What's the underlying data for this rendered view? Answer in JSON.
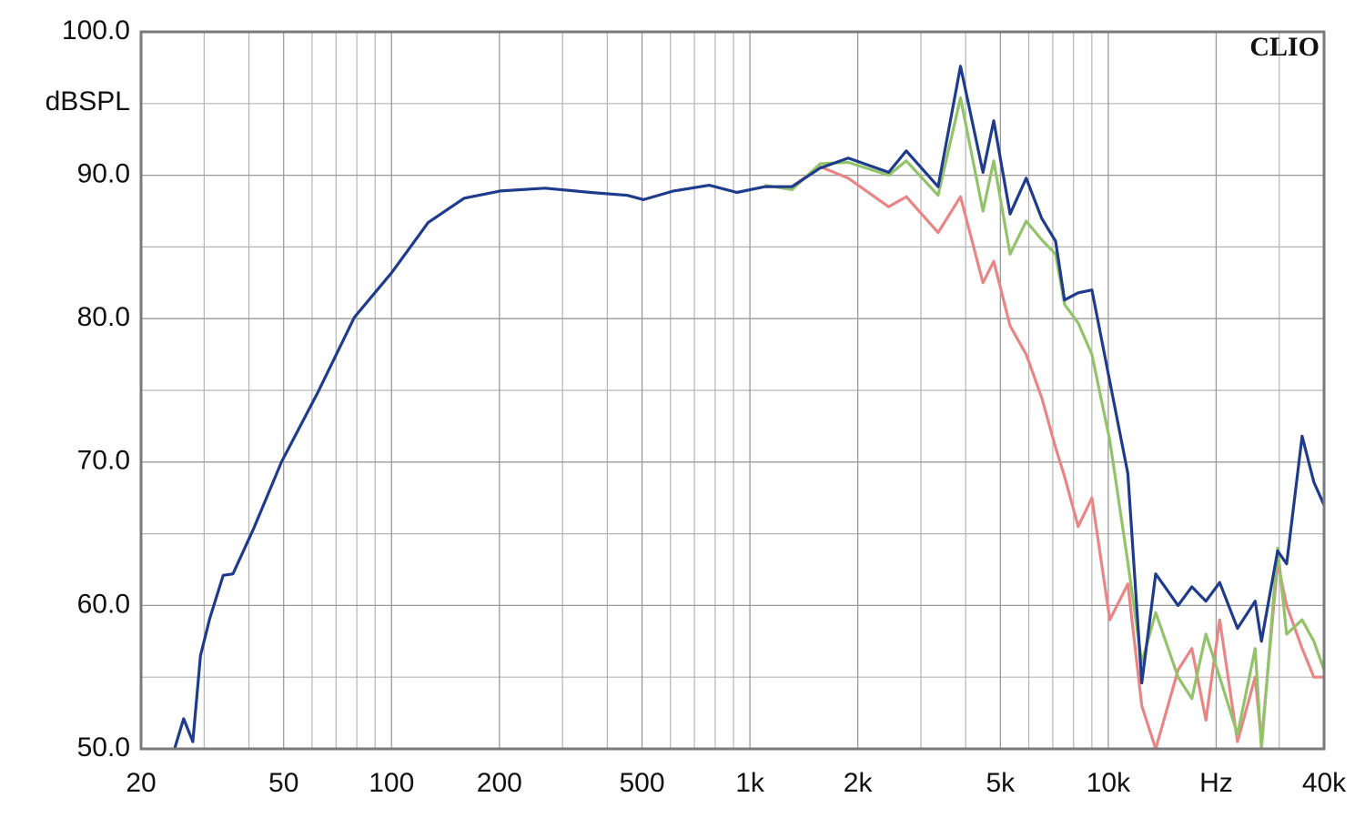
{
  "chart_data": {
    "type": "line",
    "y_label": "dBSPL",
    "annotation": "CLIO",
    "xscale": "log",
    "grid": true,
    "x": [
      24.8,
      26.3,
      27.9,
      29.3,
      31.1,
      33.9,
      36.1,
      41.3,
      49.3,
      62.4,
      78.8,
      100,
      126.5,
      159.6,
      201,
      268,
      359,
      455,
      505,
      612,
      770,
      920,
      1100,
      1310,
      1570,
      1880,
      2440,
      2730,
      3350,
      3870,
      4470,
      4790,
      5320,
      5900,
      6520,
      7130,
      7550,
      8240,
      9000,
      10100,
      11340,
      12400,
      13560,
      15660,
      17100,
      18730,
      20450,
      22940,
      25690,
      26760,
      29690,
      31460,
      34740,
      37460,
      40000
    ],
    "series": [
      {
        "color": "#1f3c8c",
        "values": [
          50.0,
          52.1,
          50.5,
          56.5,
          59.1,
          62.1,
          62.2,
          65.4,
          70.0,
          74.9,
          80.1,
          83.2,
          86.7,
          88.4,
          88.9,
          89.1,
          88.8,
          88.6,
          88.3,
          88.9,
          89.3,
          88.8,
          89.2,
          89.2,
          90.5,
          91.2,
          90.2,
          91.7,
          89.2,
          97.6,
          90.2,
          93.8,
          87.3,
          89.8,
          87.0,
          85.4,
          81.3,
          81.8,
          82.0,
          75.6,
          69.2,
          54.6,
          62.2,
          60.0,
          61.3,
          60.3,
          61.6,
          58.4,
          60.3,
          57.5,
          63.8,
          62.9,
          71.8,
          68.6,
          67.0
        ]
      },
      {
        "color": "#92c36a",
        "values": [
          null,
          null,
          null,
          null,
          null,
          null,
          null,
          null,
          null,
          null,
          null,
          null,
          null,
          null,
          null,
          null,
          null,
          null,
          null,
          null,
          null,
          null,
          89.3,
          89.0,
          90.8,
          90.9,
          90.0,
          91.0,
          88.6,
          95.4,
          87.5,
          91.0,
          84.5,
          86.8,
          85.5,
          84.5,
          81,
          79.7,
          77.5,
          71.5,
          63,
          56,
          59.5,
          55,
          53.5,
          58,
          55,
          51,
          57,
          50,
          64,
          58,
          59,
          57.5,
          55.5
        ]
      },
      {
        "color": "#ea8585",
        "values": [
          null,
          null,
          null,
          null,
          null,
          null,
          null,
          null,
          null,
          null,
          null,
          null,
          null,
          null,
          null,
          null,
          null,
          null,
          null,
          null,
          null,
          null,
          89.2,
          89.2,
          90.6,
          89.8,
          87.8,
          88.5,
          86.0,
          88.5,
          82.5,
          84.0,
          79.5,
          77.5,
          74.5,
          71,
          69,
          65.5,
          67.5,
          59,
          61.5,
          53,
          50,
          55.5,
          57,
          52,
          59,
          50.5,
          55,
          50.5,
          63,
          60,
          57,
          55,
          55
        ]
      }
    ],
    "xlim": [
      20,
      40000
    ],
    "xticks": [
      20,
      50,
      100,
      200,
      500,
      {
        "value": 1000,
        "label": "1k"
      },
      {
        "value": 2000,
        "label": "2k"
      },
      {
        "value": 5000,
        "label": "5k"
      },
      {
        "value": 10000,
        "label": "10k"
      },
      {
        "value": 20000,
        "label": "Hz"
      },
      {
        "value": 40000,
        "label": "40k"
      }
    ],
    "xminorticks": [
      30,
      40,
      60,
      70,
      80,
      90,
      300,
      400,
      600,
      700,
      800,
      900,
      3000,
      4000,
      6000,
      7000,
      8000,
      9000,
      30000
    ],
    "ylim": [
      50,
      100
    ],
    "yticks": [
      {
        "value": 50,
        "label": "50.0"
      },
      {
        "value": 60,
        "label": "60.0"
      },
      {
        "value": 70,
        "label": "70.0"
      },
      {
        "value": 80,
        "label": "80.0"
      },
      {
        "value": 90,
        "label": "90.0"
      },
      {
        "value": 100,
        "label": "100.0"
      }
    ],
    "yminorticks": [
      55,
      65,
      75,
      85,
      95
    ]
  }
}
